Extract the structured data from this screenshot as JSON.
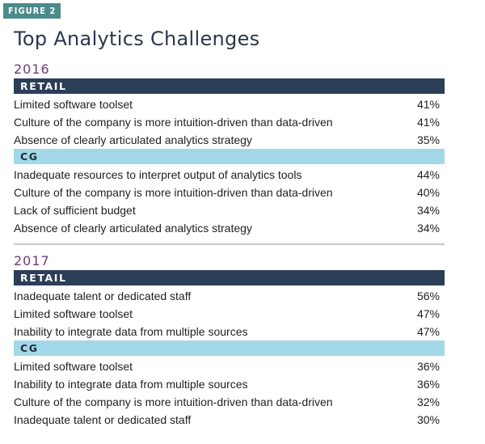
{
  "figure_label": "FIGURE 2",
  "chart_data": {
    "type": "table",
    "title": "Top Analytics Challenges",
    "sections": [
      {
        "year": "2016",
        "groups": [
          {
            "name": "RETAIL",
            "style": "dark",
            "rows": [
              {
                "label": "Limited software toolset",
                "value": "41%"
              },
              {
                "label": "Culture of the company is more intuition-driven than data-driven",
                "value": "41%"
              },
              {
                "label": "Absence of clearly articulated analytics strategy",
                "value": "35%"
              }
            ]
          },
          {
            "name": "CG",
            "style": "light",
            "rows": [
              {
                "label": "Inadequate resources to interpret output of analytics tools",
                "value": "44%"
              },
              {
                "label": "Culture of the company is more intuition-driven than data-driven",
                "value": "40%"
              },
              {
                "label": "Lack of sufficient budget",
                "value": "34%"
              },
              {
                "label": "Absence of clearly articulated analytics strategy",
                "value": "34%"
              }
            ]
          }
        ]
      },
      {
        "year": "2017",
        "groups": [
          {
            "name": "RETAIL",
            "style": "dark",
            "rows": [
              {
                "label": "Inadequate talent or dedicated staff",
                "value": "56%"
              },
              {
                "label": "Limited software toolset",
                "value": "47%"
              },
              {
                "label": "Inability to integrate data from multiple sources",
                "value": "47%"
              }
            ]
          },
          {
            "name": "CG",
            "style": "light",
            "rows": [
              {
                "label": "Limited software toolset",
                "value": "36%"
              },
              {
                "label": "Inability to integrate data from multiple sources",
                "value": "36%"
              },
              {
                "label": "Culture of the company is more intuition-driven than data-driven",
                "value": "32%"
              },
              {
                "label": "Inadequate talent or dedicated staff",
                "value": "30%"
              }
            ]
          }
        ]
      }
    ]
  },
  "colors": {
    "figure_label_bg": "#4b8a8a",
    "retail_band": "#2c3d57",
    "cg_band": "#a3d8e8",
    "year_text": "#6b3f73",
    "title_text": "#28384f"
  }
}
